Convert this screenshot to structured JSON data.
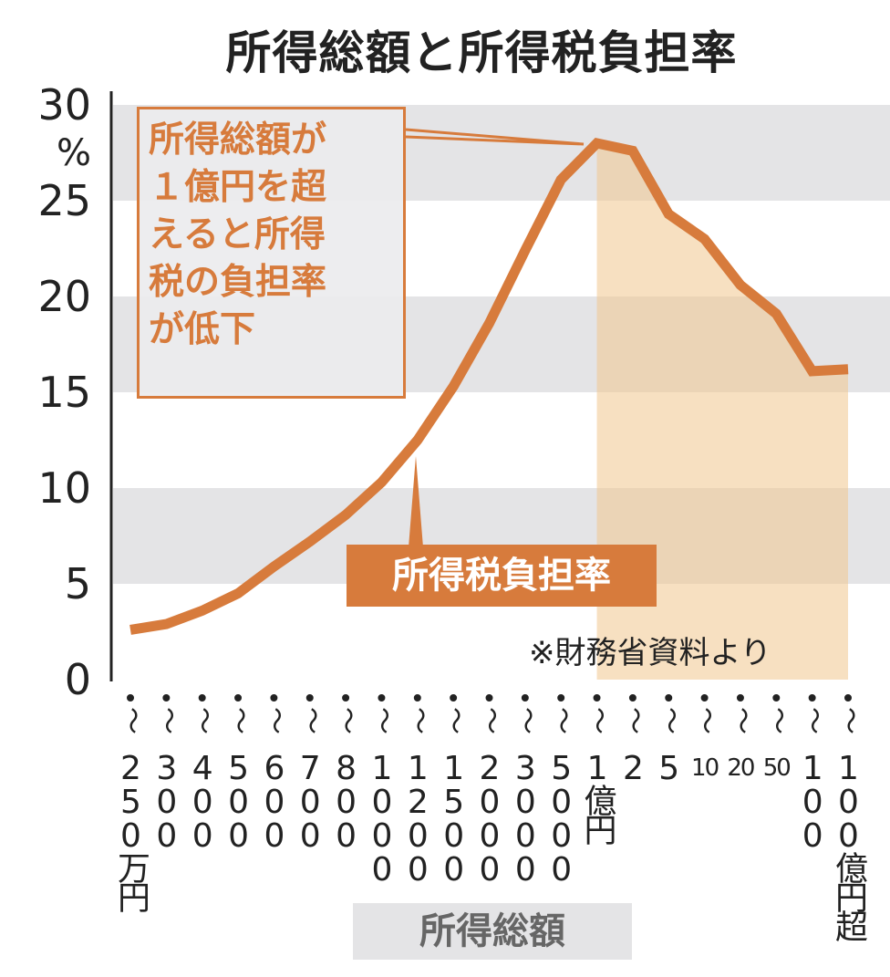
{
  "chart_data": {
    "type": "line",
    "title": "所得総額と所得税負担率",
    "xlabel": "所得総額",
    "ylabel": "%",
    "ylim": [
      0,
      30
    ],
    "yticks": [
      "0",
      "5",
      "10",
      "15",
      "20",
      "25",
      "30"
    ],
    "categories": [
      "250万円",
      "300",
      "400",
      "500",
      "600",
      "700",
      "800",
      "1000",
      "1200",
      "1500",
      "2000",
      "3000",
      "5000",
      "1億円",
      "2",
      "5",
      "10",
      "20",
      "50",
      "100",
      "100億円超"
    ],
    "series": [
      {
        "name": "所得税負担率",
        "color": "#d77b3c",
        "values": [
          2.6,
          2.9,
          3.6,
          4.5,
          5.9,
          7.2,
          8.6,
          10.3,
          12.5,
          15.3,
          18.6,
          22.4,
          26.1,
          28.0,
          27.6,
          24.3,
          23.0,
          20.6,
          19.1,
          16.1,
          16.2
        ]
      }
    ],
    "highlight_from_category": "1億円",
    "highlight_color": "#f0c68e",
    "grid_bands": [
      [
        5,
        10
      ],
      [
        15,
        20
      ],
      [
        25,
        30
      ]
    ],
    "annotation": "所得総額が\n１億円を超\nえると所得\n税の負担率\nが低下",
    "source": "※財務省資料より"
  }
}
